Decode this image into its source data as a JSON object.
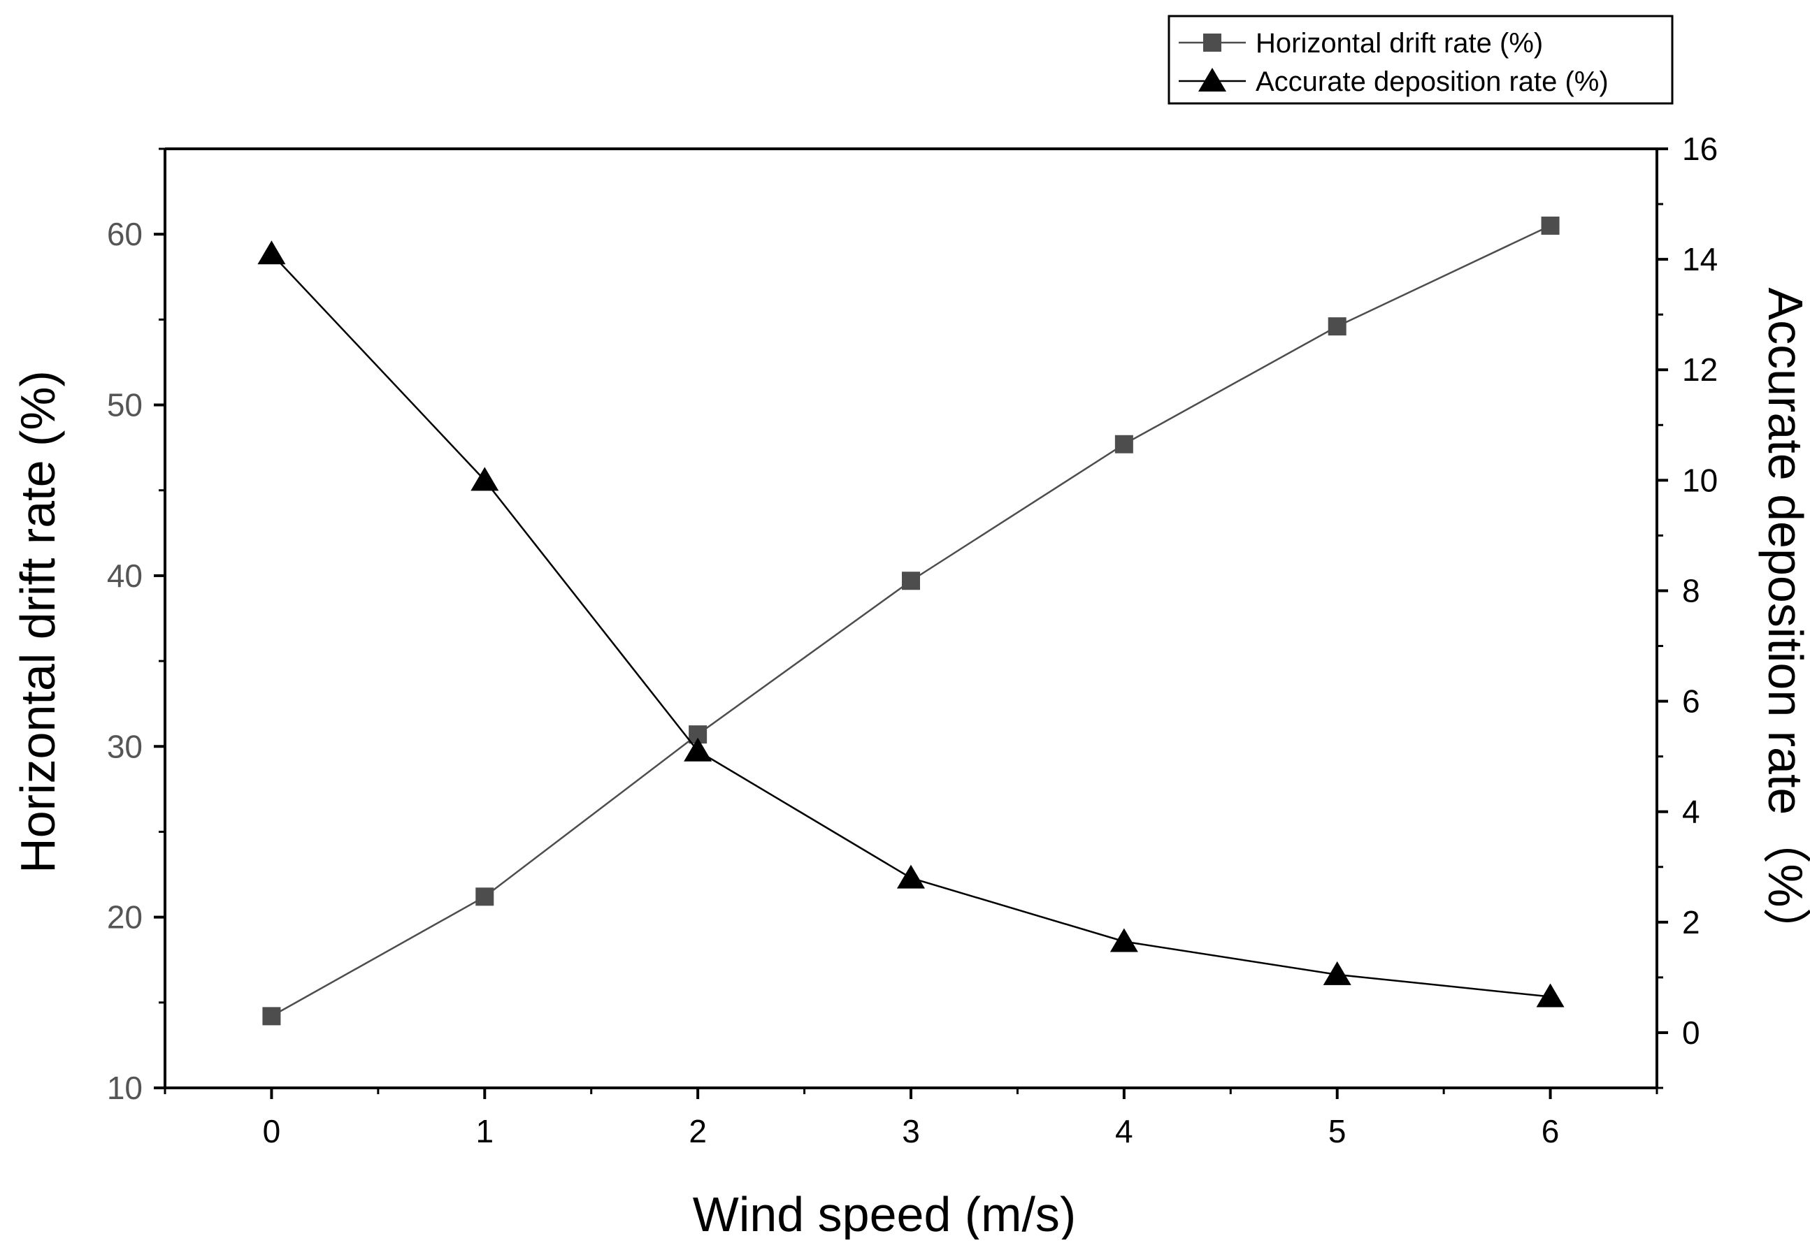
{
  "chart_data": {
    "type": "line",
    "xlabel": "Wind speed (m/s)",
    "ylabel_left": "Horizontal drift rate (%)",
    "ylabel_right": "Accurate deposition rate（%）",
    "x": [
      0,
      1,
      2,
      3,
      4,
      5,
      6
    ],
    "x_ticks": [
      "0",
      "1",
      "2",
      "3",
      "4",
      "5",
      "6"
    ],
    "xlim": [
      -0.5,
      6.5
    ],
    "ylim_left": [
      10,
      65
    ],
    "ylim_right": [
      -1,
      16
    ],
    "y_ticks_left": [
      "10",
      "20",
      "30",
      "40",
      "50",
      "60"
    ],
    "y_ticks_right": [
      "0",
      "2",
      "4",
      "6",
      "8",
      "10",
      "12",
      "14",
      "16"
    ],
    "grid": false,
    "legend_position": "top-right (above plot)",
    "series": [
      {
        "name": "Horizontal drift rate (%)",
        "axis": "left",
        "marker": "square",
        "color": "#4d4d4d",
        "values": [
          14.2,
          21.2,
          30.7,
          39.7,
          47.7,
          54.6,
          60.5
        ]
      },
      {
        "name": "Accurate deposition rate (%)",
        "axis": "right",
        "marker": "triangle",
        "color": "#000000",
        "values": [
          14.1,
          10.0,
          5.1,
          2.8,
          1.65,
          1.05,
          0.65
        ]
      }
    ]
  }
}
